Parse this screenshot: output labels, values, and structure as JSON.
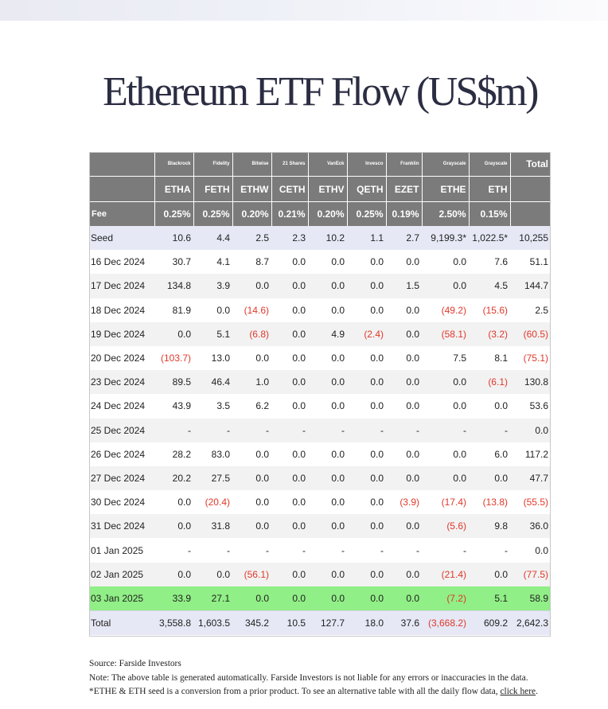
{
  "title": "Ethereum ETF Flow (US$m)",
  "colors": {
    "header_bg": "#7b7b7b",
    "seed_row_bg": "#e6e8f5",
    "alt_row_bg": "#f2f2f2",
    "highlight_row_bg": "#90ef86",
    "negative": "#e0382b"
  },
  "table": {
    "issuers": [
      "",
      "Blackrock",
      "Fidelity",
      "Bitwise",
      "21 Shares",
      "VanEck",
      "Invesco",
      "Franklin",
      "Grayscale",
      "Grayscale",
      "Total"
    ],
    "tickers": [
      "",
      "ETHA",
      "FETH",
      "ETHW",
      "CETH",
      "ETHV",
      "QETH",
      "EZET",
      "ETHE",
      "ETH",
      ""
    ],
    "fees": [
      "Fee",
      "0.25%",
      "0.25%",
      "0.20%",
      "0.21%",
      "0.20%",
      "0.25%",
      "0.19%",
      "2.50%",
      "0.15%",
      ""
    ],
    "rows": [
      [
        "Seed",
        "10.6",
        "4.4",
        "2.5",
        "2.3",
        "10.2",
        "1.1",
        "2.7",
        "9,199.3*",
        "1,022.5*",
        "10,255"
      ],
      [
        "16 Dec 2024",
        "30.7",
        "4.1",
        "8.7",
        "0.0",
        "0.0",
        "0.0",
        "0.0",
        "0.0",
        "7.6",
        "51.1"
      ],
      [
        "17 Dec 2024",
        "134.8",
        "3.9",
        "0.0",
        "0.0",
        "0.0",
        "0.0",
        "1.5",
        "0.0",
        "4.5",
        "144.7"
      ],
      [
        "18 Dec 2024",
        "81.9",
        "0.0",
        "(14.6)",
        "0.0",
        "0.0",
        "0.0",
        "0.0",
        "(49.2)",
        "(15.6)",
        "2.5"
      ],
      [
        "19 Dec 2024",
        "0.0",
        "5.1",
        "(6.8)",
        "0.0",
        "4.9",
        "(2.4)",
        "0.0",
        "(58.1)",
        "(3.2)",
        "(60.5)"
      ],
      [
        "20 Dec 2024",
        "(103.7)",
        "13.0",
        "0.0",
        "0.0",
        "0.0",
        "0.0",
        "0.0",
        "7.5",
        "8.1",
        "(75.1)"
      ],
      [
        "23 Dec 2024",
        "89.5",
        "46.4",
        "1.0",
        "0.0",
        "0.0",
        "0.0",
        "0.0",
        "0.0",
        "(6.1)",
        "130.8"
      ],
      [
        "24 Dec 2024",
        "43.9",
        "3.5",
        "6.2",
        "0.0",
        "0.0",
        "0.0",
        "0.0",
        "0.0",
        "0.0",
        "53.6"
      ],
      [
        "25 Dec 2024",
        "-",
        "-",
        "-",
        "-",
        "-",
        "-",
        "-",
        "-",
        "-",
        "0.0"
      ],
      [
        "26 Dec 2024",
        "28.2",
        "83.0",
        "0.0",
        "0.0",
        "0.0",
        "0.0",
        "0.0",
        "0.0",
        "6.0",
        "117.2"
      ],
      [
        "27 Dec 2024",
        "20.2",
        "27.5",
        "0.0",
        "0.0",
        "0.0",
        "0.0",
        "0.0",
        "0.0",
        "0.0",
        "47.7"
      ],
      [
        "30 Dec 2024",
        "0.0",
        "(20.4)",
        "0.0",
        "0.0",
        "0.0",
        "0.0",
        "(3.9)",
        "(17.4)",
        "(13.8)",
        "(55.5)"
      ],
      [
        "31 Dec 2024",
        "0.0",
        "31.8",
        "0.0",
        "0.0",
        "0.0",
        "0.0",
        "0.0",
        "(5.6)",
        "9.8",
        "36.0"
      ],
      [
        "01 Jan 2025",
        "-",
        "-",
        "-",
        "-",
        "-",
        "-",
        "-",
        "-",
        "-",
        "0.0"
      ],
      [
        "02 Jan 2025",
        "0.0",
        "0.0",
        "(56.1)",
        "0.0",
        "0.0",
        "0.0",
        "0.0",
        "(21.4)",
        "0.0",
        "(77.5)"
      ],
      [
        "03 Jan 2025",
        "33.9",
        "27.1",
        "0.0",
        "0.0",
        "0.0",
        "0.0",
        "0.0",
        "(7.2)",
        "5.1",
        "58.9"
      ],
      [
        "Total",
        "3,558.8",
        "1,603.5",
        "345.2",
        "10.5",
        "127.7",
        "18.0",
        "37.6",
        "(3,668.2)",
        "609.2",
        "2,642.3"
      ]
    ]
  },
  "footer": {
    "source": "Source: Farside Investors",
    "note": "Note: The above table is generated automatically. Farside Investors is not liable for any errors or inaccuracies in the data. *ETHE & ETH seed is a conversion from a prior product.  To see an alternative table with all the daily flow data,",
    "link_text": "click here",
    "end": "."
  }
}
